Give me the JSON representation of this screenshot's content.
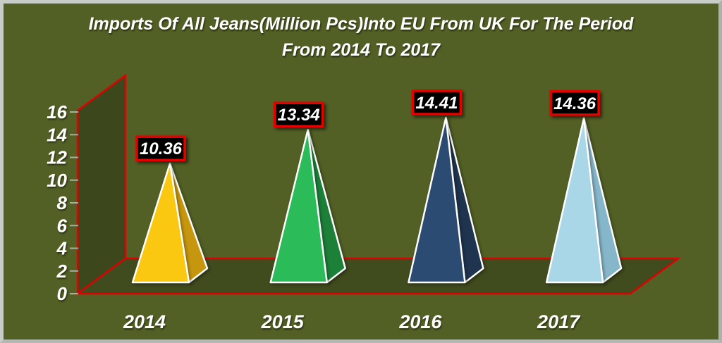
{
  "title": {
    "line1": "Imports Of All Jeans(Million Pcs)Into EU From UK For The Period",
    "line2": "From 2014 To 2017"
  },
  "chart_data": {
    "type": "bar",
    "subtype": "3d-pyramid",
    "title": "Imports Of All Jeans(Million Pcs)Into EU From UK For The Period From 2014 To 2017",
    "categories": [
      "2014",
      "2015",
      "2016",
      "2017"
    ],
    "values": [
      10.36,
      13.34,
      14.41,
      14.36
    ],
    "value_labels": [
      "10.36",
      "13.34",
      "14.41",
      "14.36"
    ],
    "xlabel": "",
    "ylabel": "",
    "ylim": [
      0,
      16
    ],
    "y_ticks": [
      0,
      2,
      4,
      6,
      8,
      10,
      12,
      14,
      16
    ],
    "grid": false,
    "legend": "none",
    "bar_colors": [
      {
        "front": "#FAC711",
        "side": "#C6970E"
      },
      {
        "front": "#2BBC59",
        "side": "#1C8038"
      },
      {
        "front": "#2C4B72",
        "side": "#1F344F"
      },
      {
        "front": "#A9D7E8",
        "side": "#86B6CA"
      }
    ]
  },
  "colors": {
    "background": "#526025",
    "wall": "#3C471C",
    "floor": "#404B1E",
    "axis_line": "#E00000",
    "tick": "#A9AFA0",
    "text": "#FFFFFF",
    "label_box_bg": "#000000",
    "label_box_border": "#E60000"
  }
}
